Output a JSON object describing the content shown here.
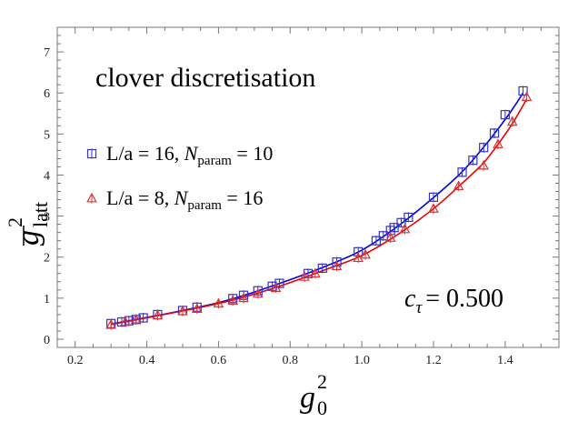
{
  "chart_data": {
    "type": "scatter",
    "title": "",
    "annotation_title": "clover discretisation",
    "annotation_param": {
      "symbol": "c",
      "subscript": "τ",
      "value": "= 0.500"
    },
    "xlabel": {
      "base": "g",
      "sup": "2",
      "sub": "0"
    },
    "ylabel": {
      "base": "g",
      "sup": "2",
      "sub": "latt",
      "overline": true
    },
    "xlim": [
      0.15,
      1.55
    ],
    "ylim": [
      -0.2,
      7.6
    ],
    "xticks": [
      "0.2",
      "0.4",
      "0.6",
      "0.8",
      "1.0",
      "1.2",
      "1.4"
    ],
    "xtick_values": [
      0.2,
      0.4,
      0.6,
      0.8,
      1.0,
      1.2,
      1.4
    ],
    "yticks": [
      "0",
      "1",
      "2",
      "3",
      "4",
      "5",
      "6",
      "7"
    ],
    "ytick_values": [
      0,
      1,
      2,
      3,
      4,
      5,
      6,
      7
    ],
    "grid": false,
    "legend_position": "left",
    "series": [
      {
        "name": "L/a = 16, N_param = 10",
        "legend": {
          "prefix": "L/a = 16, ",
          "symbol": "N",
          "sub": "param",
          "suffix": " = 10"
        },
        "color": "#3333cc",
        "line_color": "#0000dd",
        "marker": "square",
        "x": [
          0.3,
          0.33,
          0.35,
          0.37,
          0.39,
          0.43,
          0.5,
          0.54,
          0.64,
          0.67,
          0.71,
          0.75,
          0.77,
          0.85,
          0.89,
          0.93,
          0.99,
          1.04,
          1.06,
          1.08,
          1.09,
          1.11,
          1.13,
          1.2,
          1.28,
          1.31,
          1.34,
          1.37,
          1.4,
          1.45
        ],
        "y": [
          0.38,
          0.42,
          0.45,
          0.48,
          0.52,
          0.6,
          0.7,
          0.78,
          0.99,
          1.07,
          1.18,
          1.29,
          1.36,
          1.6,
          1.73,
          1.88,
          2.13,
          2.4,
          2.52,
          2.65,
          2.72,
          2.84,
          2.97,
          3.46,
          4.07,
          4.36,
          4.67,
          5.02,
          5.47,
          6.05
        ],
        "fit_x": [
          0.3,
          0.4,
          0.5,
          0.6,
          0.7,
          0.8,
          0.9,
          1.0,
          1.1,
          1.2,
          1.28,
          1.34,
          1.38,
          1.42,
          1.45
        ],
        "fit_y": [
          0.37,
          0.53,
          0.7,
          0.89,
          1.15,
          1.45,
          1.78,
          2.17,
          2.75,
          3.45,
          4.08,
          4.68,
          5.12,
          5.6,
          6.0
        ]
      },
      {
        "name": "L/a = 8, N_param = 16",
        "legend": {
          "prefix": "L/a = 8, ",
          "symbol": "N",
          "sub": "param",
          "suffix": " = 16"
        },
        "color": "#dd3333",
        "line_color": "#ee0000",
        "marker": "triangle",
        "x": [
          0.3,
          0.34,
          0.37,
          0.43,
          0.5,
          0.54,
          0.6,
          0.64,
          0.67,
          0.71,
          0.76,
          0.84,
          0.87,
          0.93,
          0.99,
          1.01,
          1.08,
          1.12,
          1.2,
          1.27,
          1.34,
          1.38,
          1.42,
          1.46
        ],
        "y": [
          0.35,
          0.42,
          0.48,
          0.58,
          0.68,
          0.74,
          0.87,
          0.94,
          1.0,
          1.11,
          1.25,
          1.52,
          1.6,
          1.78,
          1.98,
          2.06,
          2.47,
          2.68,
          3.18,
          3.73,
          4.23,
          4.75,
          5.3,
          5.9
        ],
        "fit_x": [
          0.3,
          0.4,
          0.5,
          0.6,
          0.7,
          0.8,
          0.9,
          1.0,
          1.1,
          1.2,
          1.28,
          1.34,
          1.38,
          1.42,
          1.46
        ],
        "fit_y": [
          0.36,
          0.52,
          0.69,
          0.87,
          1.1,
          1.38,
          1.7,
          2.04,
          2.55,
          3.18,
          3.8,
          4.3,
          4.75,
          5.25,
          5.85
        ]
      }
    ]
  }
}
